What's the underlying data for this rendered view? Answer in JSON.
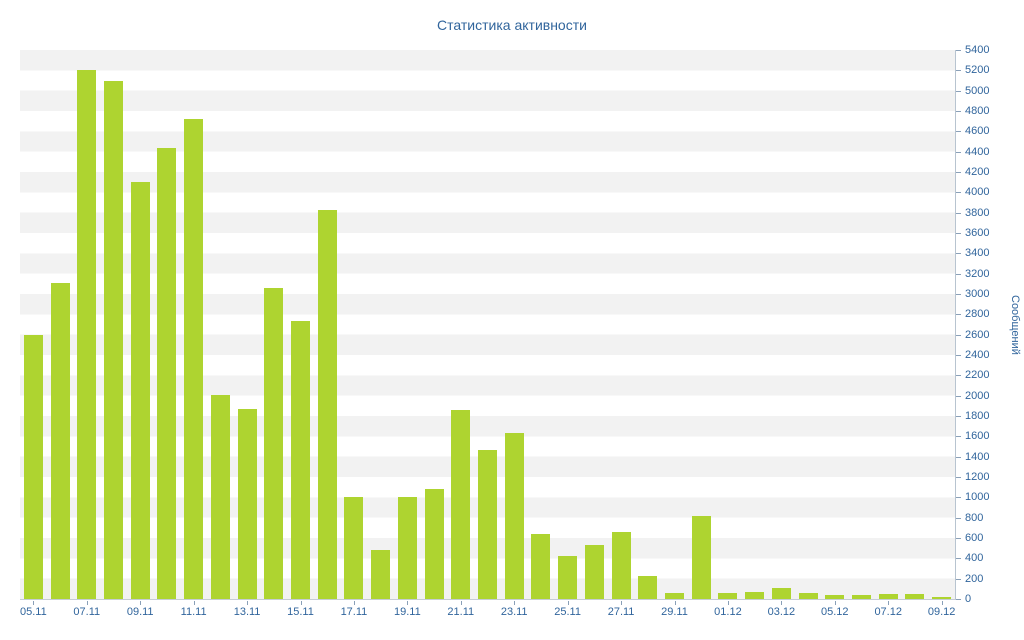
{
  "page": {
    "title": "Статистика активности"
  },
  "chart_data": {
    "type": "bar",
    "title": "Статистика активности",
    "xlabel": "",
    "ylabel": "Сообщений",
    "ylim": [
      0,
      5400
    ],
    "y_tick_step": 200,
    "y_ticks": [
      0,
      200,
      400,
      600,
      800,
      1000,
      1200,
      1400,
      1600,
      1800,
      2000,
      2200,
      2400,
      2600,
      2800,
      3000,
      3200,
      3400,
      3600,
      3800,
      4000,
      4200,
      4400,
      4600,
      4800,
      5000,
      5200,
      5400
    ],
    "categories": [
      "05.11",
      "06.11",
      "07.11",
      "08.11",
      "09.11",
      "10.11",
      "11.11",
      "12.11",
      "13.11",
      "14.11",
      "15.11",
      "16.11",
      "17.11",
      "18.11",
      "19.11",
      "20.11",
      "21.11",
      "22.11",
      "23.11",
      "24.11",
      "25.11",
      "26.11",
      "27.11",
      "28.11",
      "29.11",
      "30.11",
      "01.12",
      "02.12",
      "03.12",
      "04.12",
      "05.12",
      "06.12",
      "07.12",
      "08.12",
      "09.12"
    ],
    "values": [
      2600,
      3110,
      5200,
      5100,
      4100,
      4440,
      4720,
      2010,
      1870,
      3060,
      2730,
      3830,
      1000,
      480,
      1000,
      1080,
      1860,
      1470,
      1630,
      640,
      420,
      530,
      660,
      230,
      60,
      820,
      60,
      70,
      110,
      60,
      40,
      40,
      50,
      50,
      20
    ],
    "x_tick_labels": [
      "05.11",
      "07.11",
      "09.11",
      "11.11",
      "13.11",
      "15.11",
      "17.11",
      "19.11",
      "21.11",
      "23.11",
      "25.11",
      "27.11",
      "29.11",
      "01.12",
      "03.12",
      "05.12",
      "07.12",
      "09.12"
    ],
    "x_tick_every": 2,
    "bar_color": "#aed430",
    "label_color": "#31659c",
    "stripe_color": "#f2f2f2",
    "grid": "striped-background",
    "legend": "none"
  }
}
